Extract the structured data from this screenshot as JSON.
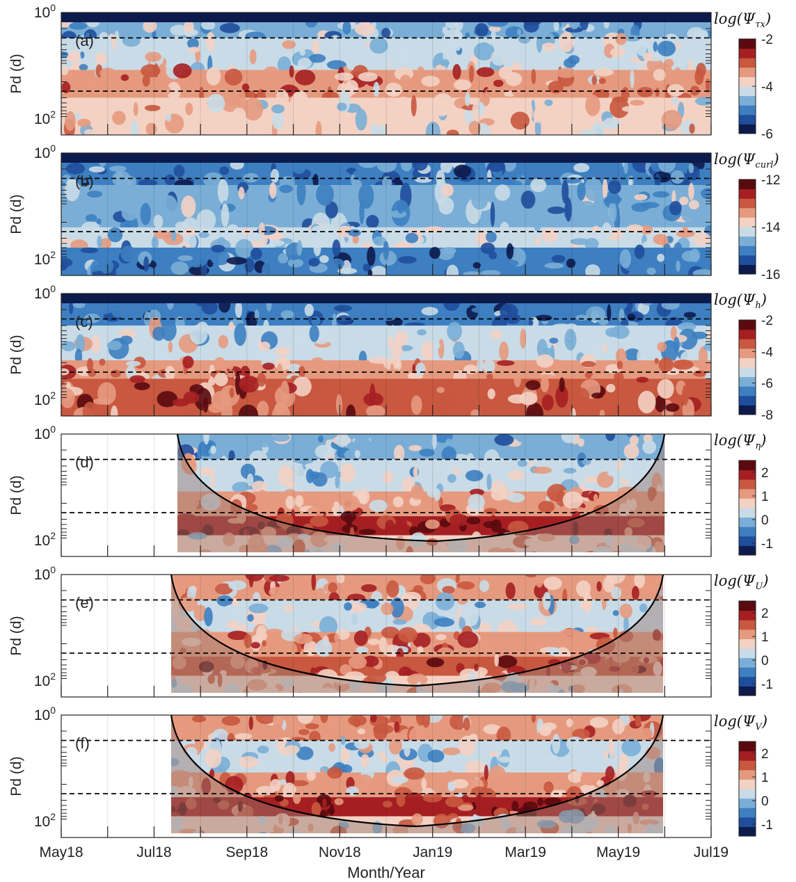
{
  "chart_data": {
    "type": "heatmap",
    "description_x": "shared time axis",
    "x_tick_labels": [
      "May18",
      "Jul18",
      "Sep18",
      "Nov18",
      "Jan19",
      "Mar19",
      "May19",
      "Jul19"
    ],
    "xlabel": "Month/Year",
    "ylabel": "Pd (d)",
    "y_tick_labels": [
      "10^0",
      "10^2"
    ],
    "y_scale": "log",
    "y_range_days": [
      1,
      200
    ],
    "reference_periods_days": [
      3,
      30
    ],
    "panels": [
      {
        "label": "(a)",
        "colorbar_title": "log(Ψ_τx)",
        "colorbar_ticks": [
          "-2",
          "-4",
          "-6"
        ],
        "clim": [
          -6,
          -2
        ],
        "has_coi": false
      },
      {
        "label": "(b)",
        "colorbar_title": "log(Ψ_curl)",
        "colorbar_ticks": [
          "-12",
          "-14",
          "-16"
        ],
        "clim": [
          -16,
          -12
        ],
        "has_coi": false
      },
      {
        "label": "(c)",
        "colorbar_title": "log(Ψ_h)",
        "colorbar_ticks": [
          "-2",
          "-4",
          "-6",
          "-8"
        ],
        "clim": [
          -8,
          -2
        ],
        "has_coi": false
      },
      {
        "label": "(d)",
        "colorbar_title": "log(Ψ_η)",
        "colorbar_ticks": [
          "2",
          "1",
          "0",
          "-1"
        ],
        "clim": [
          -1.5,
          2.5
        ],
        "has_coi": true,
        "data_span": [
          "Jul18",
          "Jun19"
        ]
      },
      {
        "label": "(e)",
        "colorbar_title": "log(Ψ_U)",
        "colorbar_ticks": [
          "2",
          "1",
          "0",
          "-1"
        ],
        "clim": [
          -1.5,
          2.5
        ],
        "has_coi": true,
        "data_span": [
          "Jul18",
          "Jun19"
        ]
      },
      {
        "label": "(f)",
        "colorbar_title": "log(Ψ_V)",
        "colorbar_ticks": [
          "2",
          "1",
          "0",
          "-1"
        ],
        "clim": [
          -1.5,
          2.5
        ],
        "has_coi": true,
        "data_span": [
          "Jul18",
          "Jun19"
        ]
      }
    ],
    "colormap": [
      "#0d1b4c",
      "#1f4e9c",
      "#3d7fc1",
      "#7aaed6",
      "#c9dbe7",
      "#f3d2c4",
      "#e59a7f",
      "#c8583f",
      "#a51f22",
      "#5a0a0f"
    ]
  }
}
